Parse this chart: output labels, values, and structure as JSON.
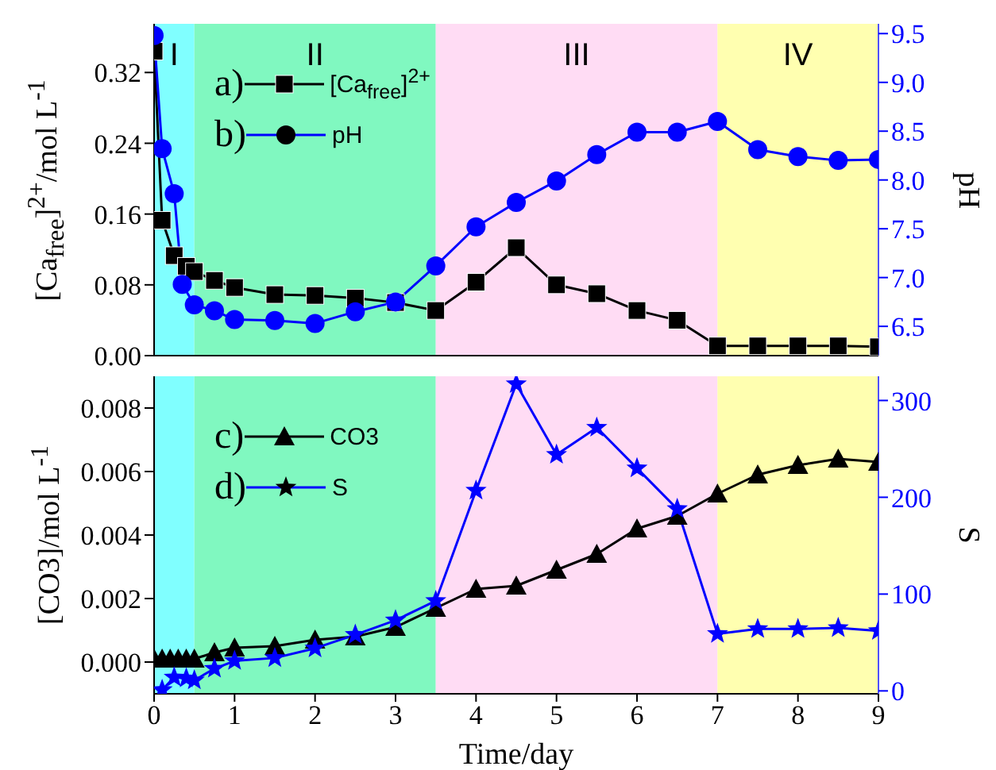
{
  "chart_data": [
    {
      "type": "line",
      "ylabel": "[Ca$_{free}$]$^{2+}$/mol L$^{-1}$",
      "y2label": "pH",
      "xlim": [
        0,
        9
      ],
      "xticks": [
        0,
        1,
        2,
        3,
        4,
        5,
        6,
        7,
        8,
        9
      ],
      "tick_labels": "y",
      "ylim": [
        0,
        0.375
      ],
      "yticks": [
        {
          "value": 0,
          "label": "0.00"
        },
        {
          "value": 0.08,
          "label": "0.08"
        },
        {
          "value": 0.16,
          "label": "0.16"
        },
        {
          "value": 0.24,
          "label": "0.24"
        },
        {
          "value": 0.32,
          "label": "0.32"
        }
      ],
      "y2lim": [
        6.2,
        9.6
      ],
      "y2ticks": [
        {
          "value": 6.5,
          "label": "6.5"
        },
        {
          "value": 7,
          "label": "7.0"
        },
        {
          "value": 7.5,
          "label": "7.5"
        },
        {
          "value": 8,
          "label": "8.0"
        },
        {
          "value": 8.5,
          "label": "8.5"
        },
        {
          "value": 9,
          "label": "9.0"
        },
        {
          "value": 9.5,
          "label": "9.5"
        }
      ],
      "grid": false,
      "legend": "top left",
      "annotations": [
        "a)",
        "b)"
      ],
      "bands": [
        {
          "axis": "x",
          "from": 0,
          "to": 0.5,
          "label": "I",
          "color": "#80ffff"
        },
        {
          "axis": "x",
          "from": 0.5,
          "to": 3.5,
          "label": "II",
          "color": "#80f8c0"
        },
        {
          "axis": "x",
          "from": 3.5,
          "to": 7,
          "label": "III",
          "color": "#ffdcf4"
        },
        {
          "axis": "x",
          "from": 7,
          "to": 9,
          "label": "IV",
          "color": "#ffffb0"
        }
      ],
      "series": [
        {
          "name": "[Ca$_{free}$]$^{2+}$",
          "color": "#000000",
          "marker": "square",
          "x": [
            0,
            0.1,
            0.25,
            0.4,
            0.5,
            0.75,
            1,
            1.5,
            2,
            2.5,
            3,
            3.5,
            4,
            4.5,
            5,
            5.5,
            6,
            6.5,
            7,
            7.5,
            8,
            8.5,
            9
          ],
          "values": [
            0.344,
            0.153,
            0.113,
            0.101,
            0.095,
            0.085,
            0.077,
            0.069,
            0.068,
            0.065,
            0.06,
            0.051,
            0.083,
            0.122,
            0.08,
            0.07,
            0.051,
            0.04,
            0.011,
            0.011,
            0.011,
            0.011,
            0.01
          ]
        },
        {
          "name": "pH",
          "color": "#0000ff",
          "marker": "circle",
          "axis": "y2",
          "x": [
            0,
            0.1,
            0.25,
            0.35,
            0.5,
            0.75,
            1,
            1.5,
            2,
            2.5,
            3,
            3.5,
            4,
            4.5,
            5,
            5.5,
            6,
            6.5,
            7,
            7.5,
            8,
            8.5,
            9
          ],
          "values": [
            9.48,
            8.32,
            7.86,
            6.93,
            6.72,
            6.66,
            6.57,
            6.56,
            6.53,
            6.65,
            6.75,
            7.12,
            7.52,
            7.77,
            7.99,
            8.26,
            8.49,
            8.49,
            8.6,
            8.31,
            8.24,
            8.2,
            8.21
          ]
        }
      ]
    },
    {
      "type": "line",
      "xlabel": "Time/day",
      "ylabel": "[CO3]/mol L$^{-1}$",
      "y2label": "S",
      "xlim": [
        0,
        9
      ],
      "xticks": [
        0,
        1,
        2,
        3,
        4,
        5,
        6,
        7,
        8,
        9
      ],
      "ylim": [
        -0.001,
        0.009
      ],
      "yticks": [
        {
          "value": 0,
          "label": "0.000"
        },
        {
          "value": 0.002,
          "label": "0.002"
        },
        {
          "value": 0.004,
          "label": "0.004"
        },
        {
          "value": 0.006,
          "label": "0.006"
        },
        {
          "value": 0.008,
          "label": "0.008"
        }
      ],
      "y2lim": [
        -3,
        325
      ],
      "y2ticks": [
        0,
        100,
        200,
        300
      ],
      "grid": false,
      "legend": "top left",
      "annotations": [
        "c)",
        "d)"
      ],
      "bands": [
        {
          "axis": "x",
          "from": 0,
          "to": 0.5,
          "color": "#80ffff"
        },
        {
          "axis": "x",
          "from": 0.5,
          "to": 3.5,
          "color": "#80f8c0"
        },
        {
          "axis": "x",
          "from": 3.5,
          "to": 7,
          "color": "#ffdcf4"
        },
        {
          "axis": "x",
          "from": 7,
          "to": 9,
          "color": "#ffffb0"
        }
      ],
      "series": [
        {
          "name": "CO3",
          "color": "#000000",
          "marker": "triangle",
          "x": [
            0,
            0.1,
            0.2,
            0.3,
            0.4,
            0.5,
            0.75,
            1,
            1.5,
            2,
            2.5,
            3,
            3.5,
            4,
            4.5,
            5,
            5.5,
            6,
            6.5,
            7,
            7.5,
            8,
            8.5,
            9
          ],
          "values": [
            0.0001,
            0.0001,
            0.0001,
            0.0001,
            0.0001,
            0.0001,
            0.0003,
            0.00045,
            0.0005,
            0.0007,
            0.0008,
            0.0011,
            0.0017,
            0.0023,
            0.0024,
            0.0029,
            0.0034,
            0.0042,
            0.0046,
            0.0053,
            0.0059,
            0.0062,
            0.0064,
            0.0063
          ]
        },
        {
          "name": "S",
          "color": "#0000ff",
          "marker": "star",
          "axis": "y2",
          "x": [
            0.1,
            0.25,
            0.4,
            0.5,
            0.75,
            1,
            1.5,
            2,
            2.5,
            3,
            3.5,
            4,
            4.5,
            5,
            5.5,
            6,
            6.5,
            7,
            7.5,
            8,
            8.5,
            9
          ],
          "values": [
            1,
            14,
            13,
            11,
            23,
            31,
            34,
            44,
            58,
            73,
            93,
            207,
            317,
            244,
            272,
            230,
            188,
            59,
            64,
            64,
            65,
            62
          ]
        }
      ]
    }
  ]
}
